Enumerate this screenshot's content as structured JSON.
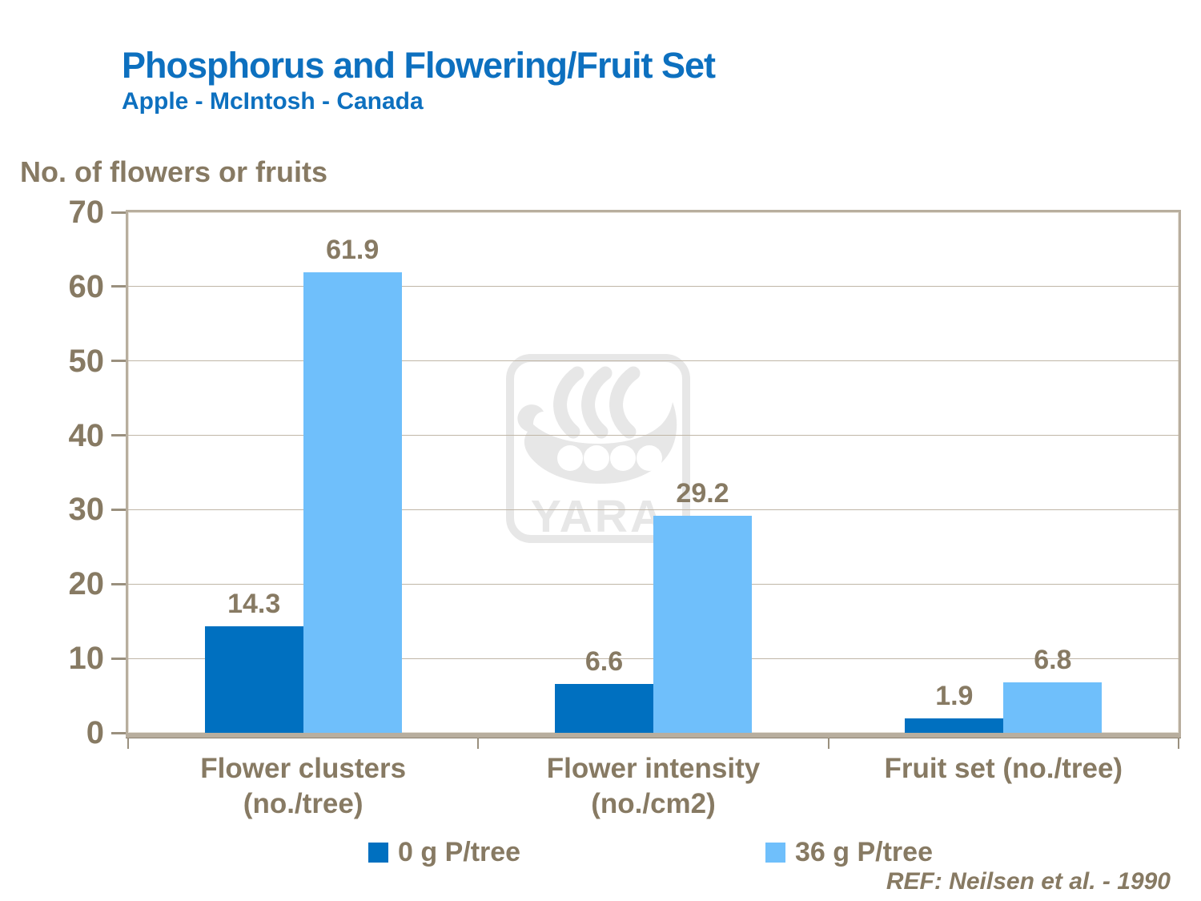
{
  "header": {
    "title": "Phosphorus and Flowering/Fruit Set",
    "subtitle": "Apple - McIntosh - Canada"
  },
  "axis_title": "No. of flowers or fruits",
  "reference": "REF: Neilsen et al. - 1990",
  "watermark_text": "YARA",
  "colors": {
    "title_blue": "#0d70bf",
    "text_brown": "#877a63",
    "gridline": "#c0b6a7",
    "axis_frame": "#b8ae9e",
    "watermark_gray": "#e7e7e7",
    "series_dark_blue": "#0070c0",
    "series_light_blue": "#6fbffb"
  },
  "chart_data": {
    "type": "bar",
    "title": "Phosphorus and Flowering/Fruit Set",
    "subtitle": "Apple - McIntosh - Canada",
    "ylabel": "No. of flowers or fruits",
    "xlabel": "",
    "categories": [
      "Flower clusters (no./tree)",
      "Flower intensity (no./cm2)",
      "Fruit set (no./tree)"
    ],
    "category_lines": [
      [
        "Flower clusters",
        "(no./tree)"
      ],
      [
        "Flower intensity",
        "(no./cm2)"
      ],
      [
        "Fruit set (no./tree)"
      ]
    ],
    "series": [
      {
        "name": "0 g P/tree",
        "color": "#0070c0",
        "values": [
          14.3,
          6.6,
          1.9
        ]
      },
      {
        "name": "36 g P/tree",
        "color": "#6fbffb",
        "values": [
          61.9,
          29.2,
          6.8
        ]
      }
    ],
    "ylim": [
      0,
      70
    ],
    "yticks": [
      0,
      10,
      20,
      30,
      40,
      50,
      60,
      70
    ],
    "grid": true,
    "value_labels": true,
    "legend_position": "bottom"
  }
}
